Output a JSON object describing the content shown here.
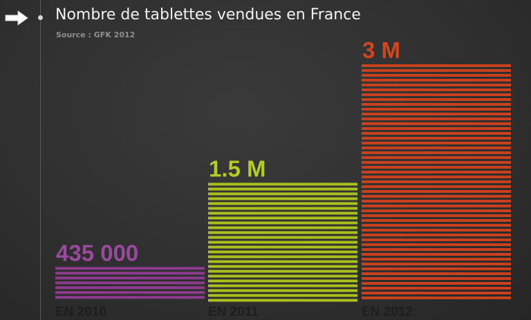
{
  "title": "Nombre de tablettes vendues en France",
  "subtitle": "Source : GFK 2012",
  "icons": {
    "header_arrow": "arrow-right-icon",
    "timeline_dot": "bullet-dot-icon"
  },
  "chart_data": {
    "type": "bar",
    "title": "Nombre de tablettes vendues en France",
    "subtitle": "Source : GFK 2012",
    "categories": [
      "EN 2010",
      "EN 2011",
      "EN 2012"
    ],
    "values": [
      435000,
      1500000,
      3000000
    ],
    "value_labels": [
      "435 000",
      "1.5 M",
      "3 M"
    ],
    "colors": [
      "#8d3a8f",
      "#a9c11d",
      "#c8401c"
    ],
    "label_colors": [
      "#9a4a9c",
      "#b5cc22",
      "#d4451c"
    ],
    "xlabel": "",
    "ylabel": "",
    "ylim": [
      0,
      3000000
    ],
    "grid": false,
    "legend": "none",
    "bar_style": "horizontal-stripes"
  }
}
